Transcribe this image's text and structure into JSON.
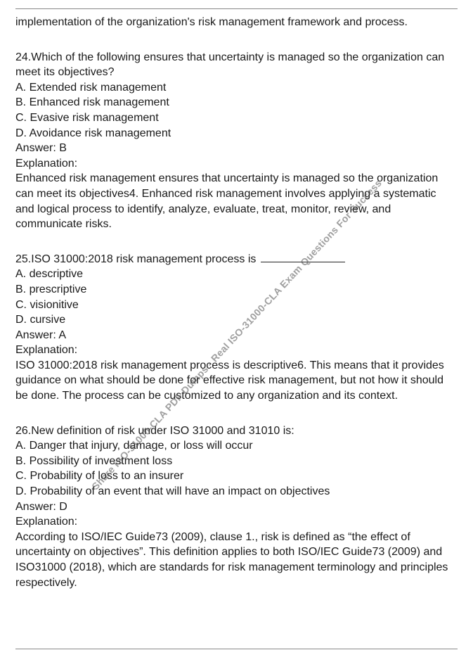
{
  "intro": "implementation of the organization's risk management framework and process.",
  "watermark": "Share ISO-31000-CLA PDF Dumps - Real ISO-31000-CLA Exam Questions For Success",
  "questions": [
    {
      "number": "24",
      "prompt": "Which of the following ensures that uncertainty is managed so the organization can meet its objectives?",
      "options": {
        "A": "Extended risk management",
        "B": "Enhanced risk management",
        "C": "Evasive risk management",
        "D": "Avoidance risk management"
      },
      "answerLabel": "Answer:",
      "answer": "B",
      "explanationLabel": "Explanation:",
      "explanation": "Enhanced risk management ensures that uncertainty is managed so the organization can meet its objectives4. Enhanced risk management involves applying a systematic and logical process to identify, analyze, evaluate, treat, monitor, review, and communicate risks."
    },
    {
      "number": "25",
      "prompt_prefix": "ISO 31000:2018 risk management process is ",
      "has_blank": true,
      "options": {
        "A": "descriptive",
        "B": "prescriptive",
        "C": "visionitive",
        "D": "cursive"
      },
      "answerLabel": "Answer:",
      "answer": "A",
      "explanationLabel": "Explanation:",
      "explanation": "ISO 31000:2018 risk management process is descriptive6. This means that it provides guidance on what should be done for effective risk management, but not how it should be done. The process can be customized to any organization and its context."
    },
    {
      "number": "26",
      "prompt": "New definition of risk under ISO 31000 and 31010 is:",
      "options": {
        "A": "Danger that injury, damage, or loss will occur",
        "B": "Possibility of investment loss",
        "C": "Probability of loss to an insurer",
        "D": "Probability of an event that will have an impact on objectives"
      },
      "answerLabel": "Answer:",
      "answer": "D",
      "explanationLabel": "Explanation:",
      "explanation": "According to ISO/IEC Guide73 (2009), clause 1., risk is defined as “the effect of uncertainty on objectives”. This definition applies to both ISO/IEC Guide73 (2009) and ISO31000 (2018), which are standards for risk management terminology and principles respectively."
    }
  ]
}
